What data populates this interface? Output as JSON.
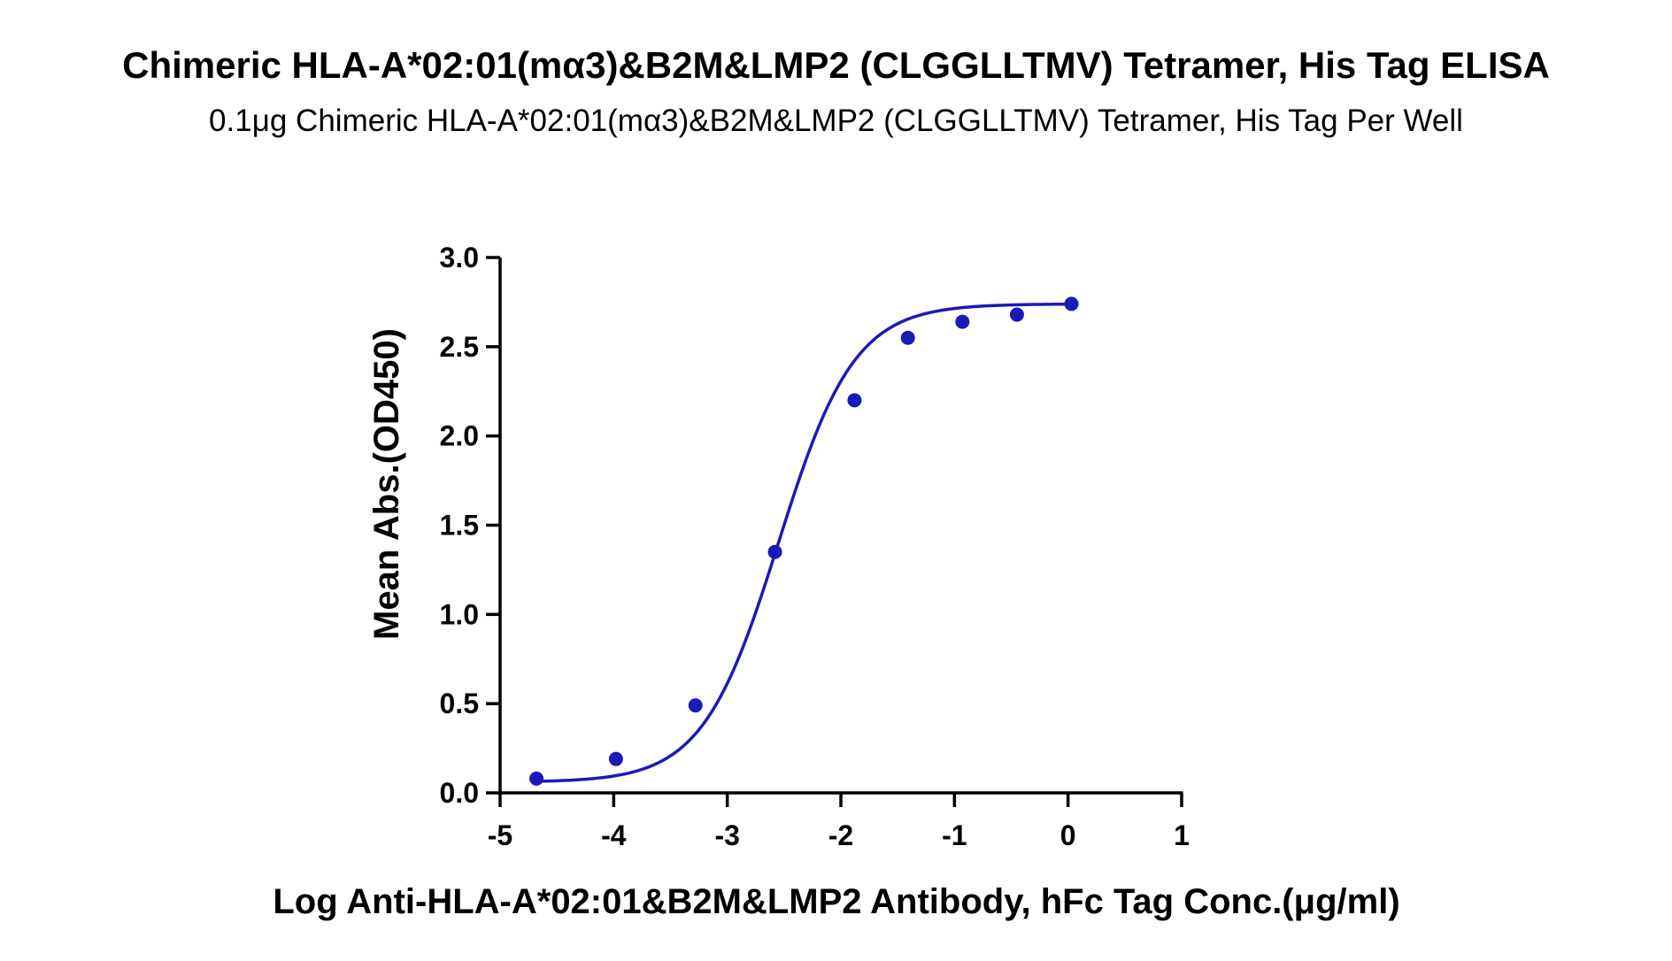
{
  "chart_data": {
    "type": "scatter",
    "title": "Chimeric HLA-A*02:01(mα3)&B2M&LMP2 (CLGGLLTMV) Tetramer, His Tag ELISA",
    "subtitle": "0.1μg Chimeric HLA-A*02:01(mα3)&B2M&LMP2 (CLGGLLTMV) Tetramer, His Tag Per Well",
    "xlabel": "Log Anti-HLA-A*02:01&B2M&LMP2 Antibody, hFc Tag Conc.(μg/ml)",
    "ylabel": "Mean Abs.(OD450)",
    "xlim": [
      -5,
      1
    ],
    "ylim": [
      0,
      3
    ],
    "x_ticks": [
      "-5",
      "-4",
      "-3",
      "-2",
      "-1",
      "0",
      "1"
    ],
    "y_ticks": [
      "0.0",
      "0.5",
      "1.0",
      "1.5",
      "2.0",
      "2.5",
      "3.0"
    ],
    "grid": false,
    "series": [
      {
        "color": "#1a1ab8",
        "fit": "four-parameter logistic",
        "x": [
          -4.68,
          -3.98,
          -3.28,
          -2.58,
          -1.88,
          -1.41,
          -0.93,
          -0.45,
          0.03
        ],
        "y": [
          0.08,
          0.19,
          0.49,
          1.35,
          2.2,
          2.55,
          2.64,
          2.68,
          2.74
        ]
      }
    ]
  }
}
